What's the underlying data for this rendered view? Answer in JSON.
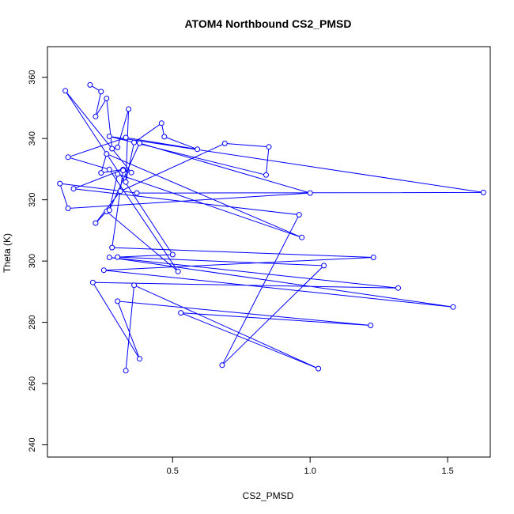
{
  "chart_data": {
    "type": "scatter",
    "title": "ATOM4 Northbound CS2_PMSD",
    "xlabel": "CS2_PMSD",
    "ylabel": "Theta (K)",
    "xlim": [
      0.045,
      1.655
    ],
    "ylim": [
      236,
      370
    ],
    "xticks": [
      0.5,
      1.0,
      1.5
    ],
    "xtick_labels": [
      "0.5",
      "1.0",
      "1.5"
    ],
    "yticks": [
      240,
      260,
      280,
      300,
      320,
      340,
      360
    ],
    "yticks_labels": [
      "240",
      "260",
      "280",
      "300",
      "320",
      "340",
      "360"
    ],
    "grid": false,
    "legend": "none",
    "color": "#0000ff",
    "series": [
      {
        "x": [
          0.2,
          0.24,
          0.22,
          0.26,
          0.28,
          0.3,
          0.34,
          0.33,
          0.36,
          0.46,
          0.47,
          0.59,
          0.33,
          0.12,
          0.27,
          0.52,
          0.26,
          0.22,
          0.31,
          0.69,
          0.85,
          0.84,
          0.27,
          1.63,
          0.37,
          0.09,
          0.12,
          1.0,
          0.38,
          0.27,
          0.3,
          0.97,
          0.26,
          0.24,
          0.32,
          0.14,
          0.96,
          0.68,
          1.05,
          0.3,
          0.5,
          0.11,
          0.35,
          0.32,
          0.28,
          1.23,
          0.25,
          1.52,
          0.27,
          1.32,
          0.21,
          0.38,
          0.3,
          1.22,
          0.53,
          1.03,
          0.36,
          0.33
        ],
        "y": [
          357.5,
          355.3,
          347.2,
          353.1,
          336.7,
          337.1,
          349.6,
          325.8,
          338.7,
          345.0,
          340.6,
          336.5,
          340.3,
          333.9,
          329.9,
          296.6,
          316.2,
          312.4,
          322.8,
          338.4,
          337.3,
          328.1,
          340.7,
          322.4,
          322.2,
          325.3,
          317.2,
          322.2,
          338.5,
          316.6,
          328.4,
          307.7,
          335.0,
          328.8,
          329.9,
          323.6,
          315.1,
          266.0,
          298.5,
          301.3,
          302.1,
          355.6,
          328.9,
          329.6,
          304.4,
          301.2,
          297.0,
          285.0,
          301.2,
          291.2,
          293.0,
          268.1,
          286.9,
          279.0,
          283.1,
          264.9,
          292.1,
          264.2
        ]
      }
    ]
  }
}
